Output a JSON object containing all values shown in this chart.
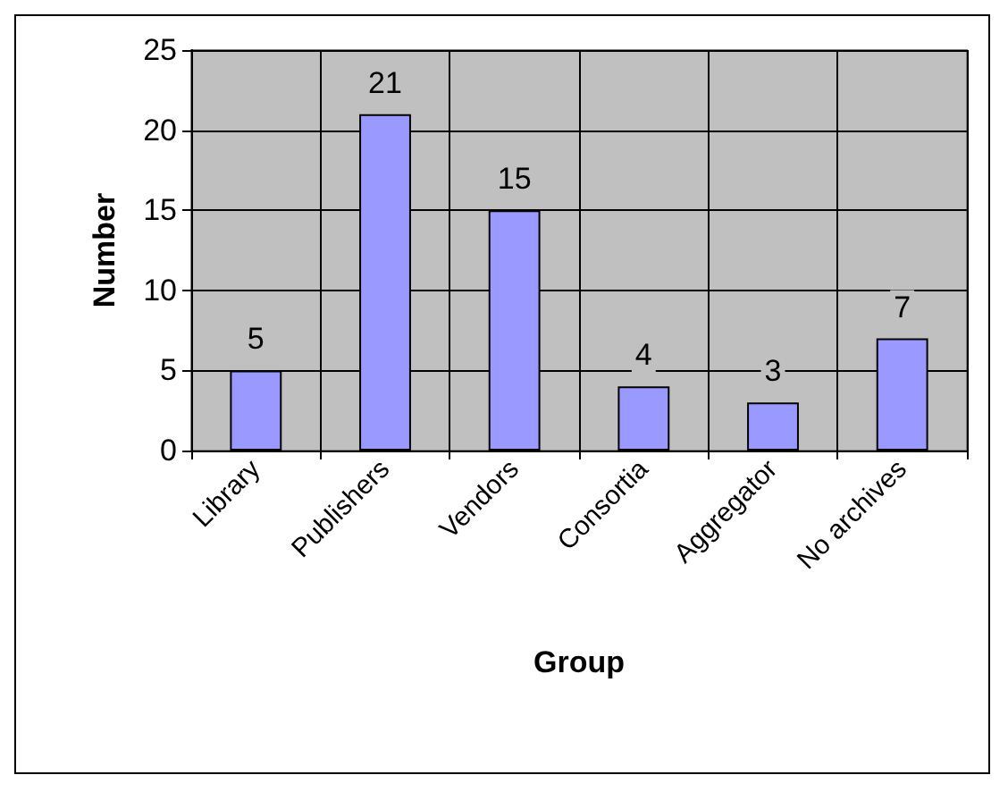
{
  "chart_data": {
    "type": "bar",
    "xlabel": "Group",
    "ylabel": "Number",
    "categories": [
      "Library",
      "Publishers",
      "Vendors",
      "Consortia",
      "Aggregator",
      "No archives"
    ],
    "values": [
      5,
      21,
      15,
      4,
      3,
      7
    ],
    "color": "#9999ff",
    "ylim": [
      0,
      25
    ],
    "yticks": [
      0,
      5,
      10,
      15,
      20,
      25
    ],
    "grid": true,
    "data_labels": true
  }
}
